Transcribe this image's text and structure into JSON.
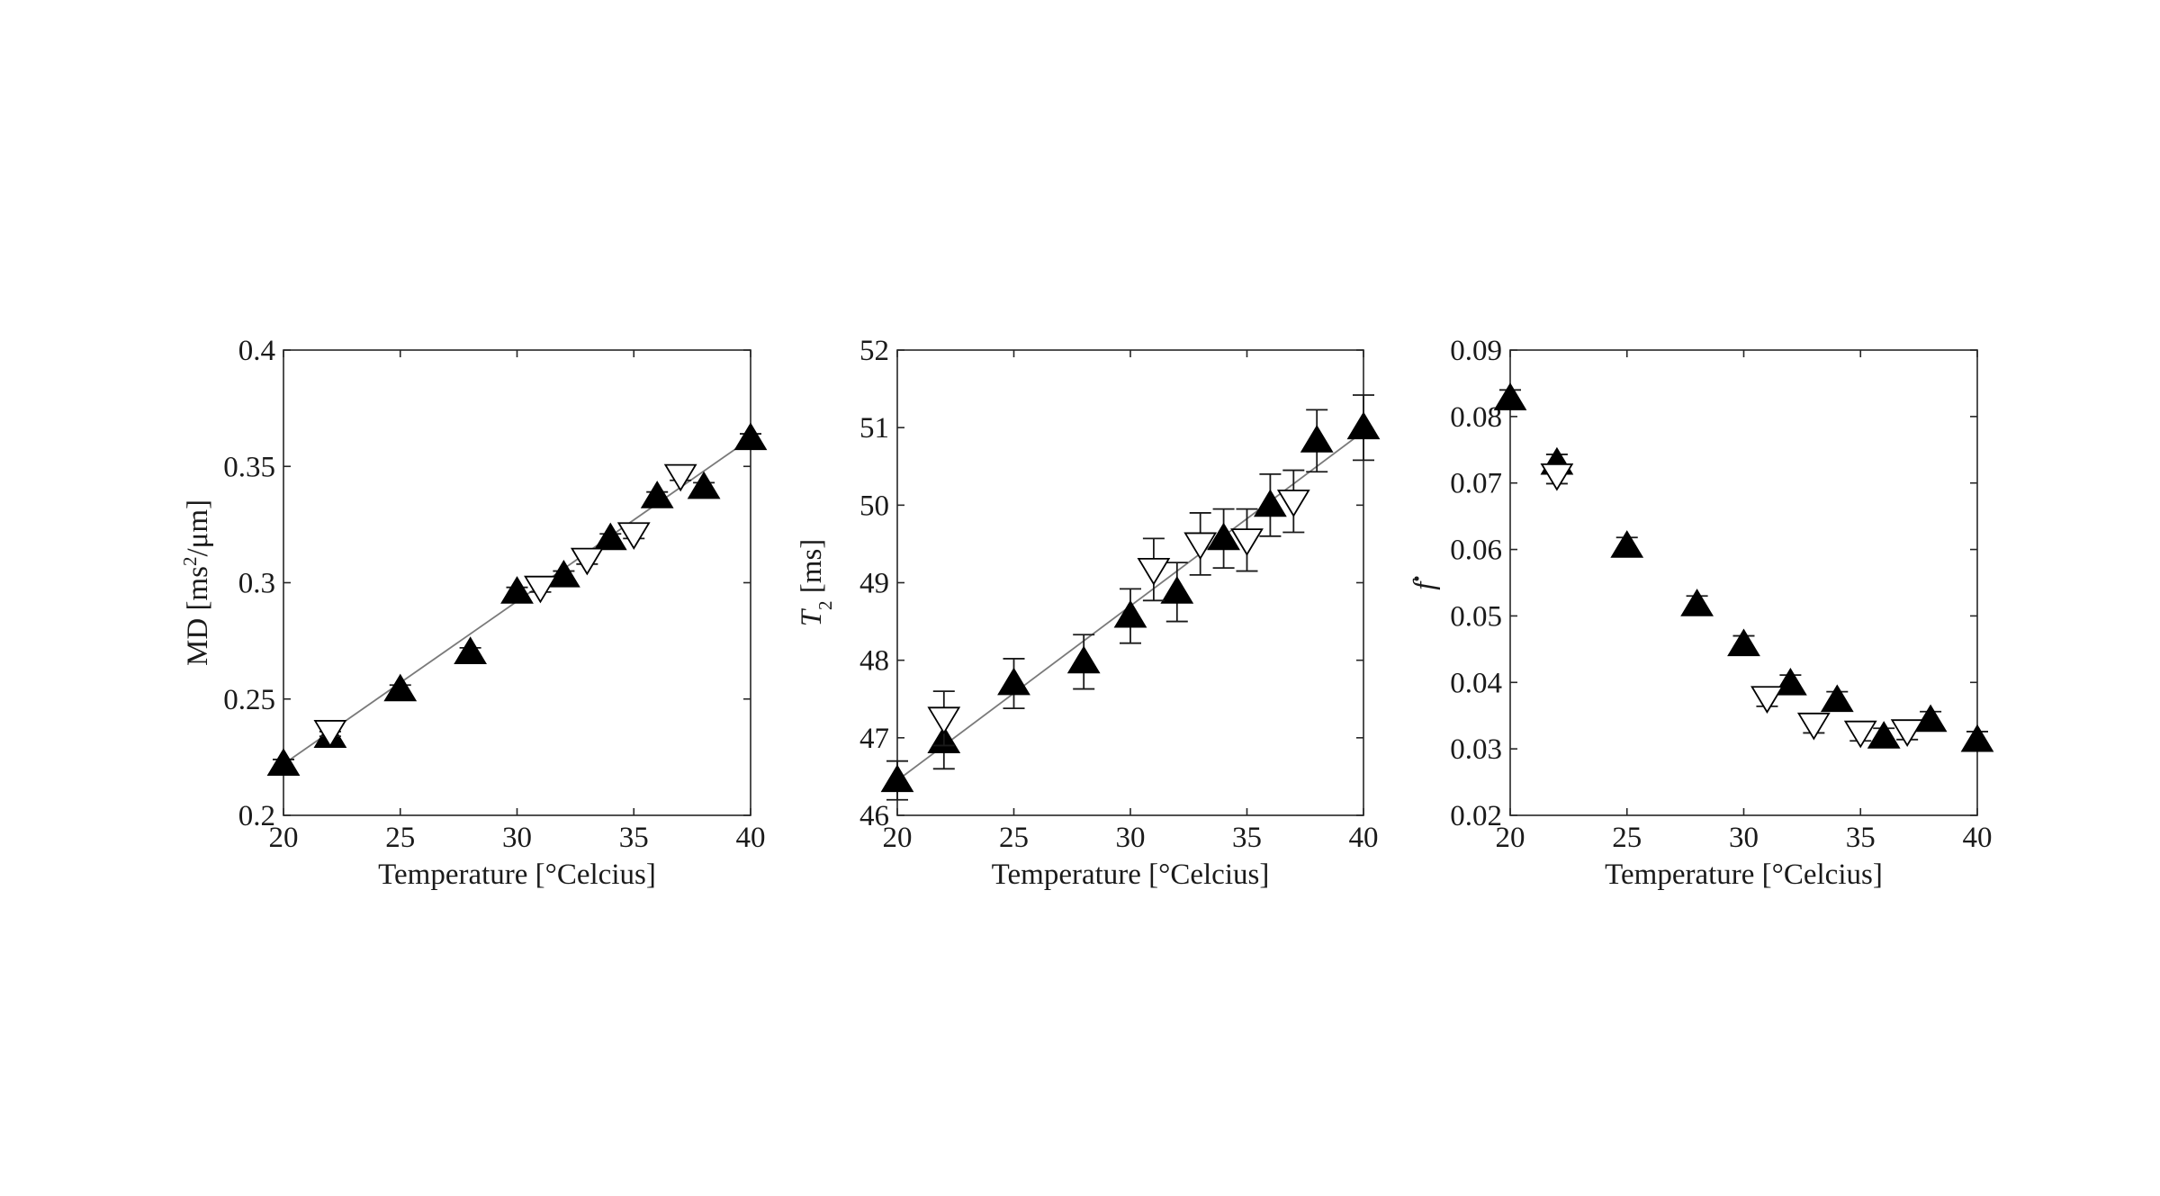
{
  "chart_data": [
    {
      "type": "scatter",
      "title": "",
      "xlabel": "Temperature [°Celcius]",
      "ylabel": "MD [ms²/μm]",
      "ylabel_main": "MD [ms",
      "ylabel_sup": "2",
      "ylabel_tail": "/μm]",
      "xlim": [
        20,
        40
      ],
      "ylim": [
        0.2,
        0.4
      ],
      "xticks": [
        20,
        25,
        30,
        35,
        40
      ],
      "yticks": [
        0.2,
        0.25,
        0.3,
        0.35,
        0.4
      ],
      "xtick_labels": [
        "20",
        "25",
        "30",
        "35",
        "40"
      ],
      "ytick_labels": [
        "0.2",
        "0.25",
        "0.3",
        "0.35",
        "0.4"
      ],
      "grid": false,
      "series": [
        {
          "marker": "filled-triangle-up",
          "x": [
            20,
            22,
            25,
            28,
            30,
            32,
            34,
            36,
            38,
            40
          ],
          "y": [
            0.222,
            0.234,
            0.254,
            0.27,
            0.296,
            0.303,
            0.319,
            0.337,
            0.341,
            0.362
          ],
          "err": [
            0.002,
            0.002,
            0.002,
            0.002,
            0.002,
            0.002,
            0.002,
            0.002,
            0.002,
            0.002
          ]
        },
        {
          "marker": "open-triangle-down",
          "x": [
            22,
            31,
            33,
            35,
            37
          ],
          "y": [
            0.236,
            0.298,
            0.31,
            0.321,
            0.346
          ],
          "err": [
            0.002,
            0.002,
            0.002,
            0.002,
            0.002
          ]
        }
      ],
      "fit_line": {
        "x": [
          20,
          40
        ],
        "y": [
          0.222,
          0.362
        ]
      }
    },
    {
      "type": "scatter",
      "title": "",
      "xlabel": "Temperature [°Celcius]",
      "ylabel": "T2 [ms]",
      "ylabel_main": "T",
      "ylabel_sub": "2",
      "ylabel_tail": " [ms]",
      "xlim": [
        20,
        40
      ],
      "ylim": [
        46,
        52
      ],
      "xticks": [
        20,
        25,
        30,
        35,
        40
      ],
      "yticks": [
        46,
        47,
        48,
        49,
        50,
        51,
        52
      ],
      "xtick_labels": [
        "20",
        "25",
        "30",
        "35",
        "40"
      ],
      "ytick_labels": [
        "46",
        "47",
        "48",
        "49",
        "50",
        "51",
        "52"
      ],
      "grid": false,
      "series": [
        {
          "marker": "filled-triangle-up",
          "x": [
            20,
            22,
            25,
            28,
            30,
            32,
            34,
            36,
            38,
            40
          ],
          "y": [
            46.45,
            46.95,
            47.7,
            47.98,
            48.57,
            48.88,
            49.57,
            50.0,
            50.83,
            51.0
          ],
          "err": [
            0.25,
            0.35,
            0.32,
            0.35,
            0.35,
            0.38,
            0.38,
            0.4,
            0.4,
            0.42
          ]
        },
        {
          "marker": "open-triangle-down",
          "x": [
            22,
            31,
            33,
            35,
            37
          ],
          "y": [
            47.25,
            49.17,
            49.5,
            49.55,
            50.05
          ],
          "err": [
            0.35,
            0.4,
            0.4,
            0.4,
            0.4
          ]
        }
      ],
      "fit_line": {
        "x": [
          20,
          40
        ],
        "y": [
          46.45,
          50.95
        ]
      }
    },
    {
      "type": "scatter",
      "title": "",
      "xlabel": "Temperature [°Celcius]",
      "ylabel": "f•",
      "ylabel_main": "f",
      "ylabel_sup": "•",
      "xlim": [
        20,
        40
      ],
      "ylim": [
        0.02,
        0.09
      ],
      "xticks": [
        20,
        25,
        30,
        35,
        40
      ],
      "yticks": [
        0.02,
        0.03,
        0.04,
        0.05,
        0.06,
        0.07,
        0.08,
        0.09
      ],
      "xtick_labels": [
        "20",
        "25",
        "30",
        "35",
        "40"
      ],
      "ytick_labels": [
        "0.02",
        "0.03",
        "0.04",
        "0.05",
        "0.06",
        "0.07",
        "0.08",
        "0.09"
      ],
      "grid": false,
      "series": [
        {
          "marker": "filled-triangle-up",
          "x": [
            20,
            22,
            25,
            28,
            30,
            32,
            34,
            36,
            38,
            40
          ],
          "y": [
            0.0827,
            0.073,
            0.0605,
            0.0517,
            0.0457,
            0.0398,
            0.0373,
            0.0318,
            0.0343,
            0.0313
          ],
          "err": [
            0.0013,
            0.0013,
            0.0013,
            0.0013,
            0.0013,
            0.0013,
            0.0013,
            0.0013,
            0.0013,
            0.0013
          ]
        },
        {
          "marker": "open-triangle-down",
          "x": [
            22,
            31,
            33,
            35,
            37
          ],
          "y": [
            0.0712,
            0.0377,
            0.0337,
            0.0325,
            0.0327
          ],
          "err": [
            0.0013,
            0.0013,
            0.0013,
            0.0013,
            0.0013
          ]
        }
      ]
    }
  ]
}
